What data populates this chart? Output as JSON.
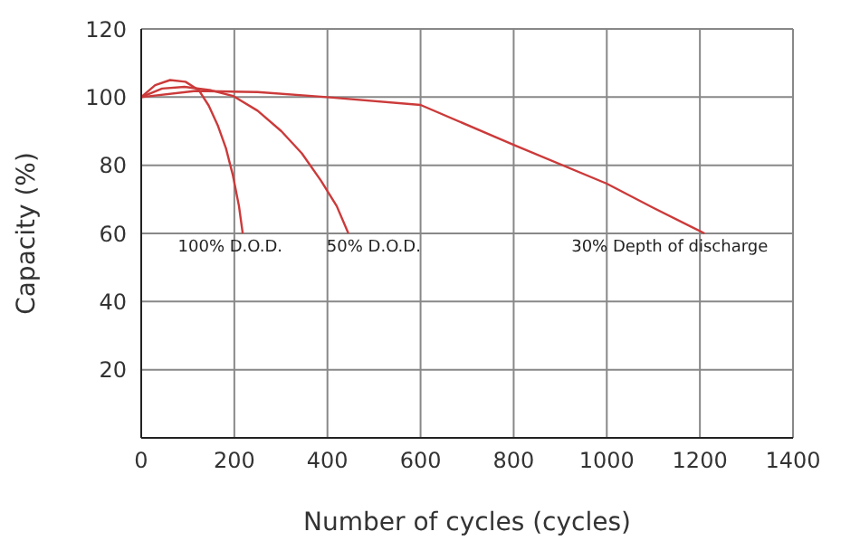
{
  "chart_data": {
    "type": "line",
    "xlabel": "Number of cycles (cycles)",
    "ylabel": "Capacity (%)",
    "xlim": [
      0,
      1400
    ],
    "xticks": [
      0,
      200,
      400,
      600,
      800,
      1000,
      1200,
      1400
    ],
    "ylim": [
      0,
      120
    ],
    "yticks": [
      20,
      40,
      60,
      80,
      100,
      120
    ],
    "grid": true,
    "legend": false,
    "marker": "none",
    "line_style": "solid",
    "series": [
      {
        "name": "100% D.O.D.",
        "color": "#cc3a3a",
        "x": [
          0,
          30,
          62,
          95,
          124,
          145,
          165,
          182,
          197,
          210,
          218
        ],
        "values": [
          100,
          103.5,
          105,
          104.5,
          102,
          97.5,
          91.5,
          85,
          77,
          68,
          60
        ]
      },
      {
        "name": "50% D.O.D.",
        "color": "#cc3a3a",
        "x": [
          0,
          45,
          93,
          150,
          198,
          250,
          301,
          345,
          386,
          420,
          445
        ],
        "values": [
          100,
          102.5,
          103,
          102,
          100.3,
          96,
          90,
          83.5,
          75.5,
          68,
          60
        ]
      },
      {
        "name": "30% Depth of discharge",
        "color": "#cc3a3a",
        "x": [
          0,
          117,
          250,
          399,
          600,
          800,
          1000,
          1100,
          1210
        ],
        "values": [
          100,
          101.8,
          101.5,
          100,
          97.7,
          86,
          74.6,
          67.5,
          60
        ]
      }
    ]
  }
}
